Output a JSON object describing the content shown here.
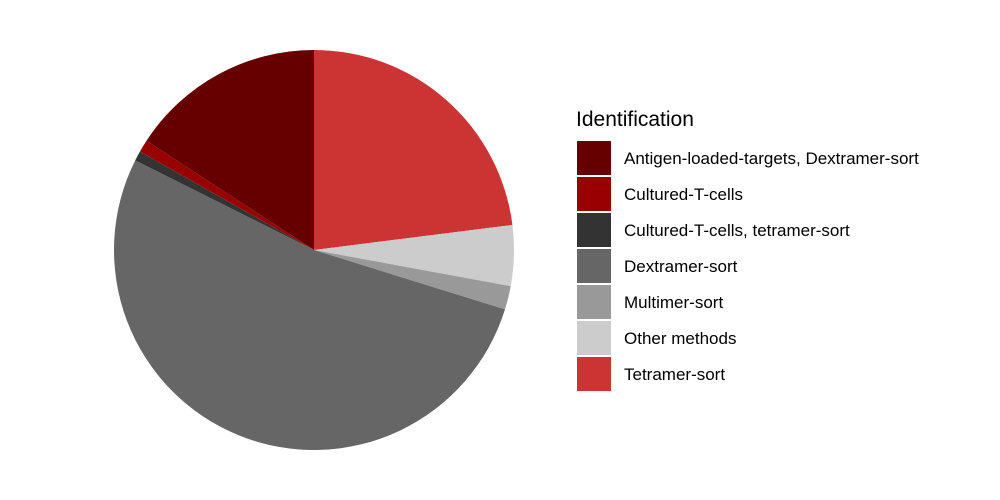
{
  "chart_data": {
    "type": "pie",
    "title": "",
    "legend": {
      "title": "Identification",
      "position": "right"
    },
    "start": "12 o'clock",
    "direction": "clockwise",
    "slices": [
      {
        "label": "Tetramer-sort",
        "value": 23.0,
        "color": "#cc3333"
      },
      {
        "label": "Other methods",
        "value": 4.9,
        "color": "#cccccc"
      },
      {
        "label": "Multimer-sort",
        "value": 1.9,
        "color": "#999999"
      },
      {
        "label": "Dextramer-sort",
        "value": 52.6,
        "color": "#666666"
      },
      {
        "label": "Cultured-T-cells, tetramer-sort",
        "value": 0.8,
        "color": "#333333"
      },
      {
        "label": "Cultured-T-cells",
        "value": 1.0,
        "color": "#990000"
      },
      {
        "label": "Antigen-loaded-targets, Dextramer-sort",
        "value": 15.8,
        "color": "#660000"
      }
    ],
    "legend_order": [
      "Antigen-loaded-targets, Dextramer-sort",
      "Cultured-T-cells",
      "Cultured-T-cells, tetramer-sort",
      "Dextramer-sort",
      "Multimer-sort",
      "Other methods",
      "Tetramer-sort"
    ]
  }
}
